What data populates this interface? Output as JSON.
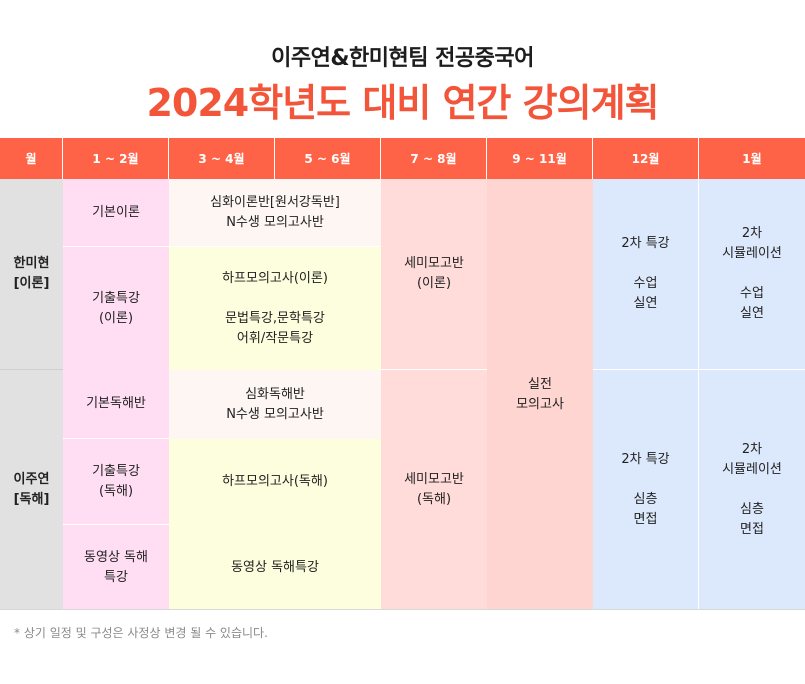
{
  "header": {
    "subtitle": "이주연&한미현팀 전공중국어",
    "title": "2024학년도 대비 연간 강의계획"
  },
  "table": {
    "columns": [
      "월",
      "1 ~ 2월",
      "3 ~ 4월",
      "5 ~ 6월",
      "7 ~ 8월",
      "9 ~ 11월",
      "12월",
      "1월"
    ],
    "groups": [
      {
        "label": "한미현\n[이론]"
      },
      {
        "label": "이주연\n[독해]"
      }
    ],
    "cells": {
      "hmh_basic": "기본이론",
      "hmh_intensive": "심화이론반[원서강독반]\nN수생 모의고사반",
      "hmh_past": "기출특강\n(이론)",
      "hmh_half": "하프모의고사(이론)\n\n문법특강,문학특강\n어휘/작문특강",
      "hmh_seminar": "세미모고반\n(이론)",
      "mock": "실전\n모의고사",
      "hmh_dec": "2차 특강\n\n수업\n실연",
      "hmh_jan": "2차\n시뮬레이션\n\n수업\n실연",
      "ljy_basic": "기본독해반",
      "ljy_intensive": "심화독해반\nN수생 모의고사반",
      "ljy_past": "기출특강\n(독해)",
      "ljy_half": "하프모의고사(독해)",
      "ljy_seminar": "세미모고반\n(독해)",
      "ljy_video": "동영상 독해\n특강",
      "ljy_video2": "동영상 독해특강",
      "ljy_dec": "2차 특강\n\n심층\n면접",
      "ljy_jan": "2차\n시뮬레이션\n\n심층\n면접"
    }
  },
  "footnote": "* 상기 일정 및 구성은 사정상 변경 될 수 있습니다."
}
